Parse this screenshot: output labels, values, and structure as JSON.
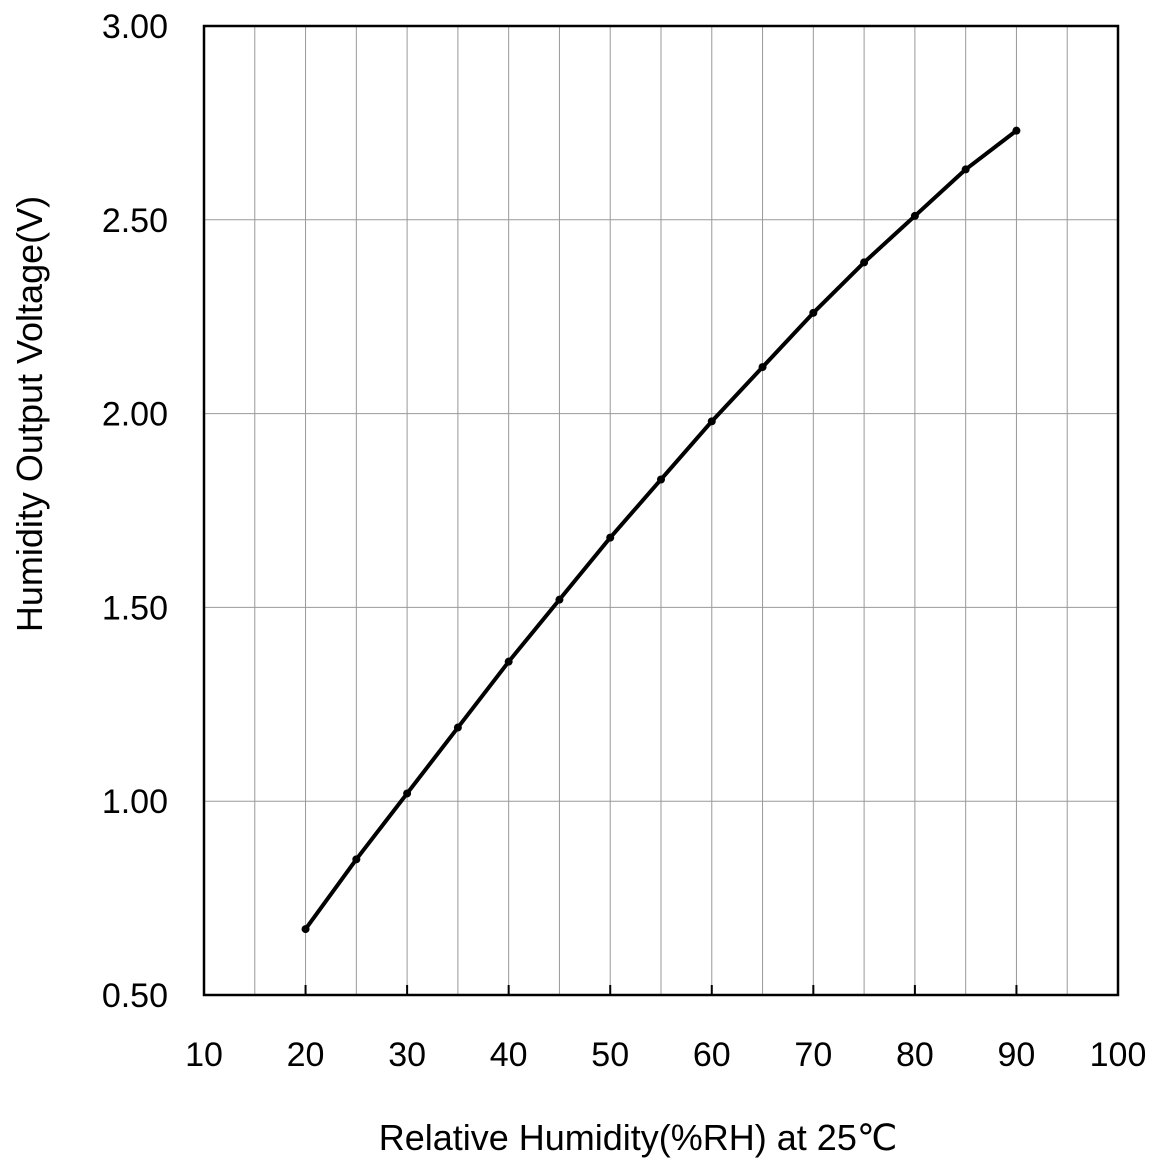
{
  "chart_data": {
    "type": "line",
    "title": "",
    "xlabel": "Relative Humidity(%RH) at 25℃",
    "ylabel": "Humidity Output Voltage(V)",
    "xlim": [
      10,
      100
    ],
    "ylim": [
      0.5,
      3.0
    ],
    "x_ticks": [
      "10",
      "20",
      "30",
      "40",
      "50",
      "60",
      "70",
      "80",
      "90",
      "100"
    ],
    "y_ticks": [
      "0.50",
      "1.00",
      "1.50",
      "2.00",
      "2.50",
      "3.00"
    ],
    "x_minor_step": 5,
    "y_minor_step": 0.5,
    "grid": true,
    "legend": "none",
    "colors": {
      "line": "#000000",
      "grid": "#999999",
      "frame": "#000000"
    },
    "series": [
      {
        "x": [
          20,
          25,
          30,
          35,
          40,
          45,
          50,
          55,
          60,
          65,
          70,
          75,
          80,
          85,
          90
        ],
        "values": [
          0.67,
          0.85,
          1.02,
          1.19,
          1.36,
          1.52,
          1.68,
          1.83,
          1.98,
          2.12,
          2.26,
          2.39,
          2.51,
          2.63,
          2.73
        ]
      }
    ]
  }
}
